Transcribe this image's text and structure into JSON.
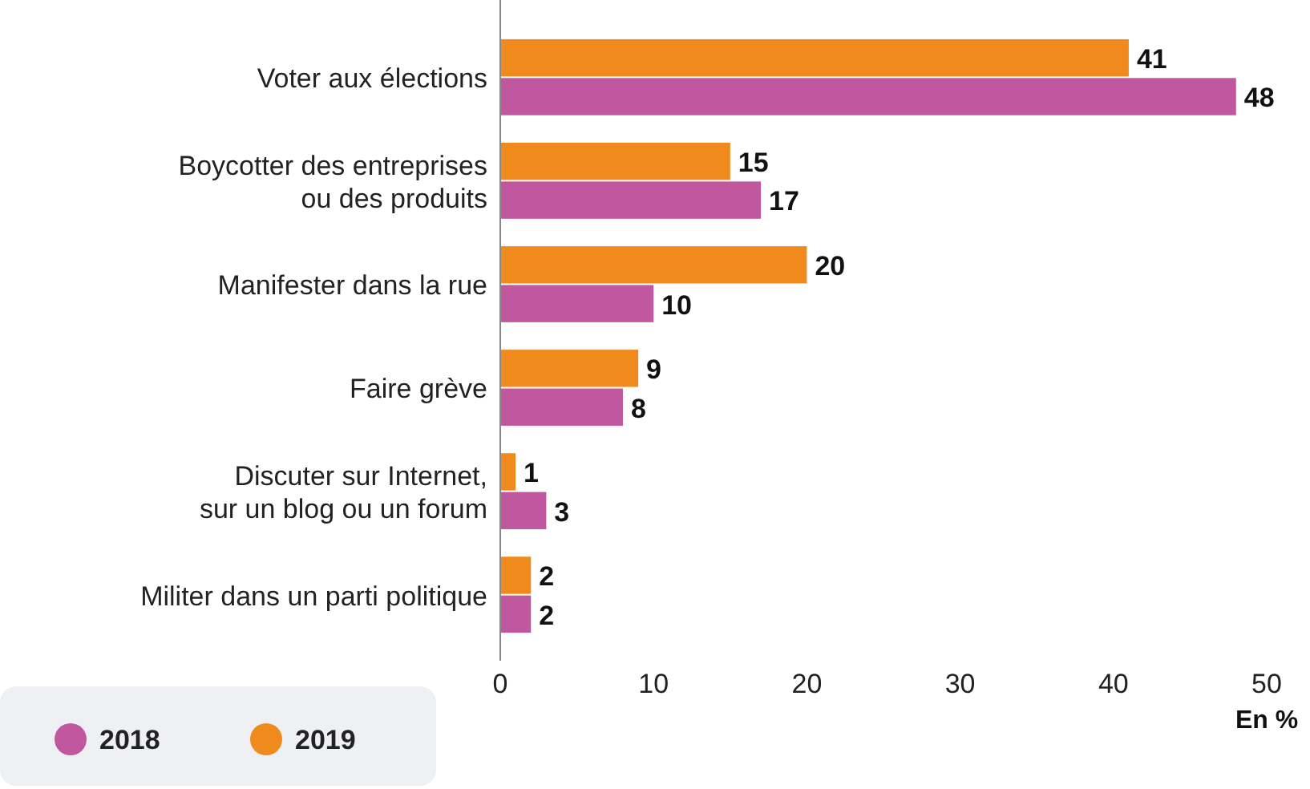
{
  "chart_data": {
    "type": "bar",
    "orientation": "horizontal",
    "categories": [
      "Voter aux élections",
      "Boycotter des entreprises\nou des produits",
      "Manifester dans la rue",
      "Faire grève",
      "Discuter sur Internet,\nsur un blog ou un forum",
      "Militer dans un parti politique"
    ],
    "series": [
      {
        "name": "2018",
        "color": "#c0579f",
        "values": [
          48,
          17,
          10,
          8,
          3,
          2
        ]
      },
      {
        "name": "2019",
        "color": "#f18a1c",
        "values": [
          41,
          15,
          20,
          9,
          1,
          2
        ]
      }
    ],
    "xlim": [
      0,
      50
    ],
    "xticks": [
      0,
      10,
      20,
      30,
      40,
      50
    ],
    "xlabel": "En %",
    "data_labels": true,
    "legend": "bottom left"
  }
}
